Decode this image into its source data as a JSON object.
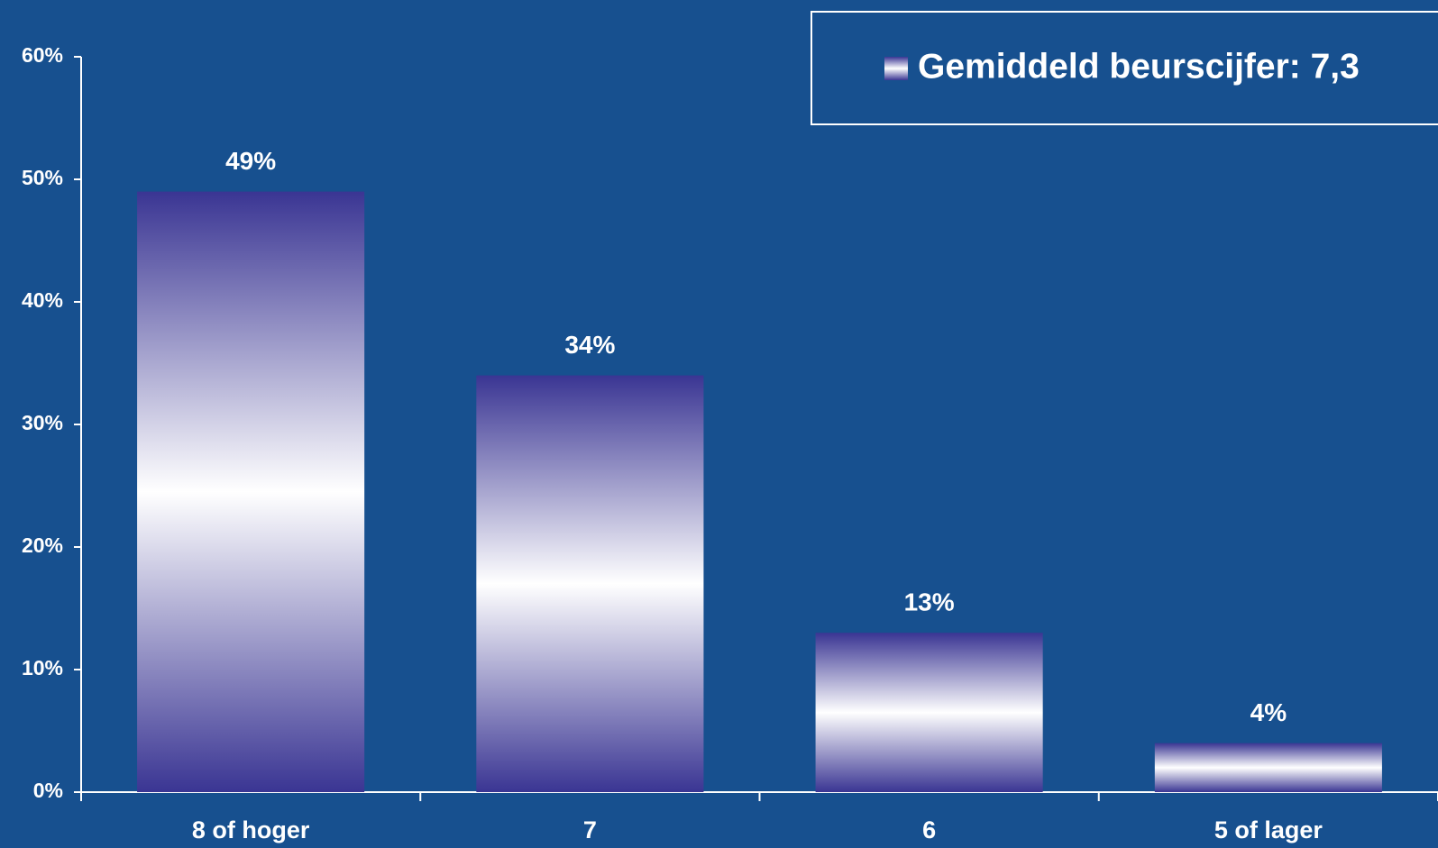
{
  "chart_data": {
    "type": "bar",
    "categories": [
      "8 of hoger",
      "7",
      "6",
      "5 of lager"
    ],
    "series": [
      {
        "name": "Gemiddeld beurscijfer: 7,3",
        "color": "#3a3593",
        "values": [
          49,
          34,
          13,
          4
        ],
        "value_labels": [
          "49%",
          "34%",
          "13%",
          "4%"
        ]
      }
    ],
    "ylim": [
      0,
      60
    ],
    "yticks": [
      {
        "value": 0,
        "label": "0%"
      },
      {
        "value": 10,
        "label": "10%"
      },
      {
        "value": 20,
        "label": "20%"
      },
      {
        "value": 30,
        "label": "30%"
      },
      {
        "value": 40,
        "label": "40%"
      },
      {
        "value": 50,
        "label": "50%"
      },
      {
        "value": 60,
        "label": "60%"
      }
    ],
    "grid": false,
    "legend": "top-right"
  }
}
